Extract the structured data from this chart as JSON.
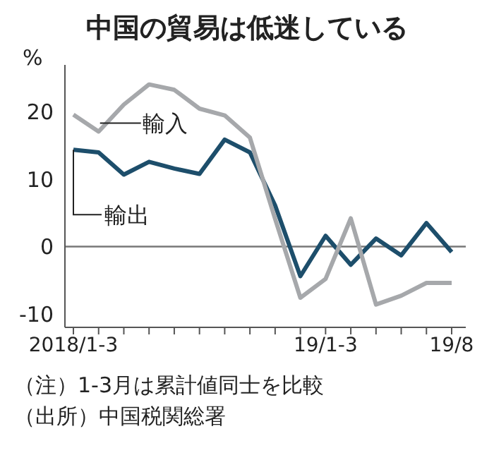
{
  "chart_data": {
    "type": "line",
    "title": "中国の貿易は低迷している",
    "ylabel": "%",
    "categories": [
      "2018/1-3",
      null,
      null,
      null,
      null,
      null,
      null,
      null,
      null,
      null,
      "19/1-3",
      null,
      null,
      null,
      null,
      "19/8"
    ],
    "series": [
      {
        "name": "輸出",
        "color": "#1d4e6b",
        "values": [
          14.4,
          14.0,
          10.7,
          12.6,
          11.6,
          10.8,
          15.9,
          14.0,
          6.1,
          -4.4,
          1.6,
          -2.7,
          1.2,
          -1.3,
          3.5,
          -0.8
        ]
      },
      {
        "name": "輸入",
        "color": "#a6a8ab",
        "values": [
          19.6,
          17.1,
          21.1,
          24.1,
          23.3,
          20.5,
          19.5,
          16.2,
          4.1,
          -7.6,
          -4.8,
          4.2,
          -8.6,
          -7.3,
          -5.4,
          -5.4
        ]
      }
    ],
    "ylim": [
      -12,
      27
    ],
    "yticks": [
      -10,
      0,
      10,
      20
    ],
    "ref_lines": [
      {
        "axis": "y",
        "value": 0,
        "color": "#777777"
      }
    ],
    "grid": false,
    "legend": false,
    "marker": "none",
    "line_style": "solid",
    "annotations": [
      "（注）1-3月は累計値同士を比較",
      "（出所）中国税関総署"
    ]
  }
}
